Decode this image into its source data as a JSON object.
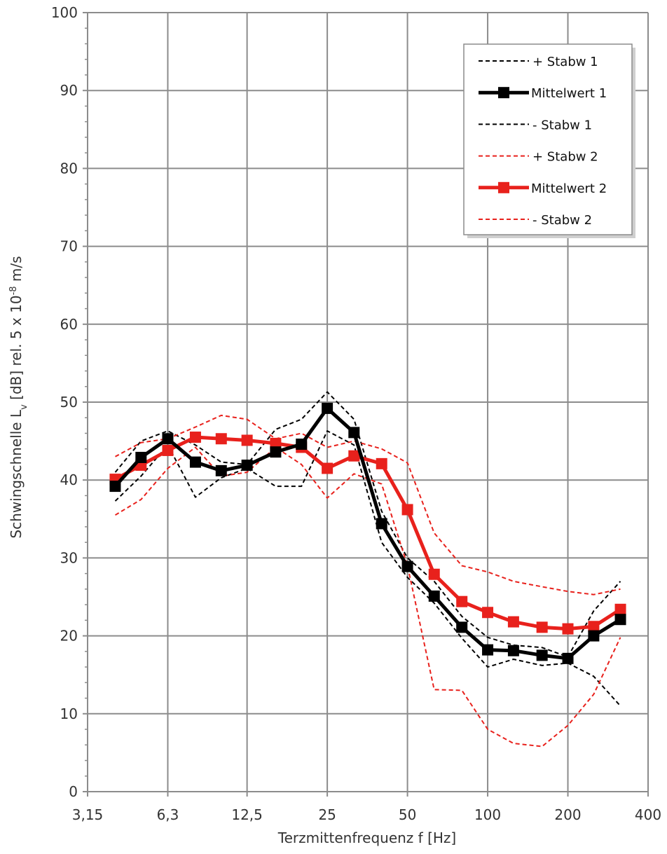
{
  "chart_data": {
    "type": "line",
    "xlabel": "Terzmittenfrequenz f [Hz]",
    "ylabel": {
      "base": "Schwingschnelle L",
      "sub": "v",
      "mid": " [dB] rel. 5 x 10",
      "sup": "-8",
      "end": " m/s"
    },
    "ylim": [
      0,
      100
    ],
    "y_ticks": [
      "0",
      "10",
      "20",
      "30",
      "40",
      "50",
      "60",
      "70",
      "80",
      "90",
      "100"
    ],
    "xlim": [
      3.15,
      400
    ],
    "x_scale": "log",
    "x_ticks": [
      {
        "value": 3.15,
        "label": "3,15"
      },
      {
        "value": 6.3,
        "label": "6,3"
      },
      {
        "value": 12.5,
        "label": "12,5"
      },
      {
        "value": 25,
        "label": "25"
      },
      {
        "value": 50,
        "label": "50"
      },
      {
        "value": 100,
        "label": "100"
      },
      {
        "value": 200,
        "label": "200"
      },
      {
        "value": 400,
        "label": "400"
      }
    ],
    "grid": true,
    "legend_position": "top-right",
    "x": [
      4,
      5,
      6.3,
      8,
      10,
      12.5,
      16,
      20,
      25,
      31.5,
      40,
      50,
      63,
      80,
      100,
      125,
      160,
      200,
      250,
      315
    ],
    "series": [
      {
        "name": "+ Stabw 1",
        "color": "#000000",
        "style": "dashed",
        "marker": false,
        "values": [
          41.0,
          45.0,
          46.3,
          44.5,
          42.3,
          42.0,
          46.5,
          47.8,
          51.3,
          47.8,
          36.0,
          30.0,
          27.0,
          22.5,
          19.8,
          18.8,
          18.5,
          17.3,
          23.2,
          27.0
        ]
      },
      {
        "name": "Mittelwert 1",
        "color": "#000000",
        "style": "solid",
        "marker": true,
        "values": [
          39.2,
          42.9,
          45.3,
          42.3,
          41.2,
          41.9,
          43.6,
          44.6,
          49.2,
          46.1,
          34.4,
          28.9,
          25.1,
          21.1,
          18.2,
          18.1,
          17.5,
          17.1,
          20.0,
          22.1
        ]
      },
      {
        "name": "- Stabw 1",
        "color": "#000000",
        "style": "dashed",
        "marker": false,
        "values": [
          37.3,
          40.5,
          44.5,
          37.8,
          40.3,
          41.5,
          39.2,
          39.2,
          46.3,
          44.5,
          32.0,
          27.5,
          24.2,
          19.7,
          16.0,
          17.0,
          16.2,
          16.5,
          14.8,
          11.0
        ]
      },
      {
        "name": "+ Stabw 2",
        "color": "#e8211c",
        "style": "dashed",
        "marker": false,
        "values": [
          43.0,
          44.8,
          45.3,
          46.8,
          48.3,
          47.8,
          45.3,
          46.0,
          44.2,
          45.0,
          44.0,
          42.2,
          33.2,
          29.0,
          28.2,
          27.0,
          26.3,
          25.7,
          25.3,
          26.0
        ]
      },
      {
        "name": "Mittelwert 2",
        "color": "#e8211c",
        "style": "solid",
        "marker": true,
        "values": [
          40.1,
          41.9,
          43.8,
          45.5,
          45.3,
          45.1,
          44.7,
          44.2,
          41.5,
          43.1,
          42.1,
          36.2,
          27.9,
          24.4,
          23.0,
          21.8,
          21.1,
          20.9,
          21.2,
          23.4
        ]
      },
      {
        "name": "- Stabw 2",
        "color": "#e8211c",
        "style": "dashed",
        "marker": false,
        "values": [
          35.5,
          37.5,
          41.5,
          44.2,
          40.5,
          41.0,
          44.2,
          42.0,
          37.7,
          40.8,
          39.5,
          29.0,
          13.1,
          13.0,
          8.0,
          6.2,
          5.8,
          8.5,
          12.5,
          19.8
        ]
      }
    ]
  }
}
